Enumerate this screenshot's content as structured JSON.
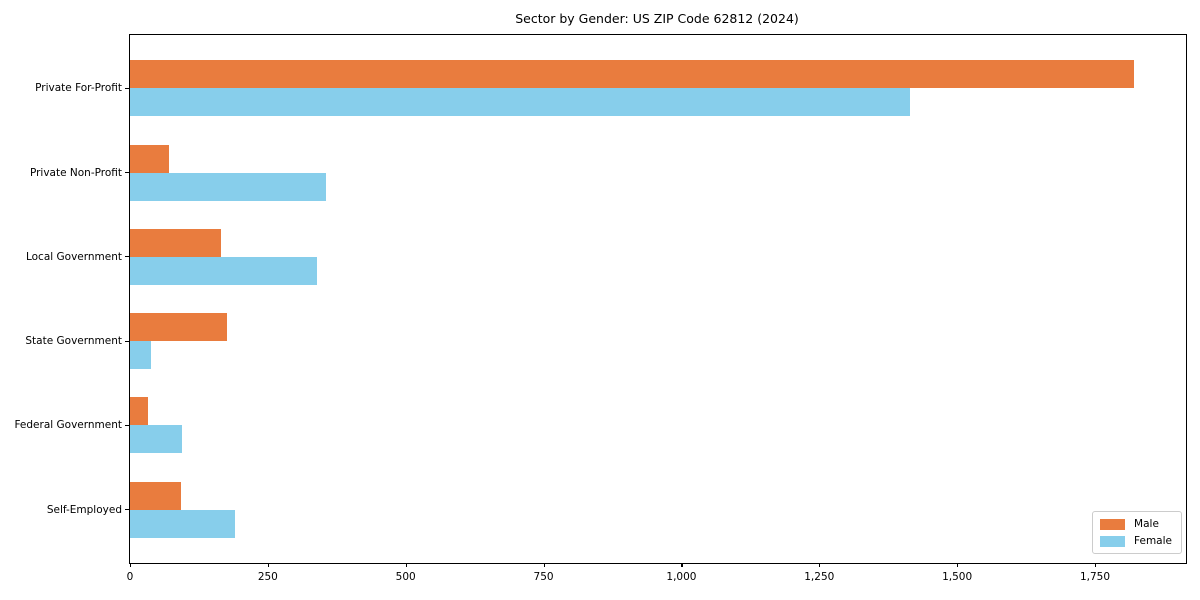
{
  "title": "Sector by Gender: US ZIP Code 62812 (2024)",
  "colors": {
    "male": "#e97c3e",
    "female": "#87ceeb",
    "axis": "#000000",
    "legend_border": "#cccccc",
    "background": "#ffffff"
  },
  "legend": {
    "male_label": "Male",
    "female_label": "Female"
  },
  "chart_data": {
    "type": "bar",
    "orientation": "horizontal",
    "title": "Sector by Gender: US ZIP Code 62812 (2024)",
    "categories": [
      "Private For-Profit",
      "Private Non-Profit",
      "Local Government",
      "State Government",
      "Federal Government",
      "Self-Employed"
    ],
    "series": [
      {
        "name": "Male",
        "color": "#e97c3e",
        "values": [
          1820,
          70,
          165,
          175,
          33,
          92
        ]
      },
      {
        "name": "Female",
        "color": "#87ceeb",
        "values": [
          1415,
          355,
          340,
          38,
          95,
          190
        ]
      }
    ],
    "xlabel": "",
    "ylabel": "",
    "xlim": [
      0,
      1915
    ],
    "x_ticks": [
      0,
      250,
      500,
      750,
      1000,
      1250,
      1500,
      1750
    ],
    "x_tick_labels": [
      "0",
      "250",
      "500",
      "750",
      "1,000",
      "1,250",
      "1,500",
      "1,750"
    ],
    "grid": false,
    "legend_position": "lower right"
  }
}
